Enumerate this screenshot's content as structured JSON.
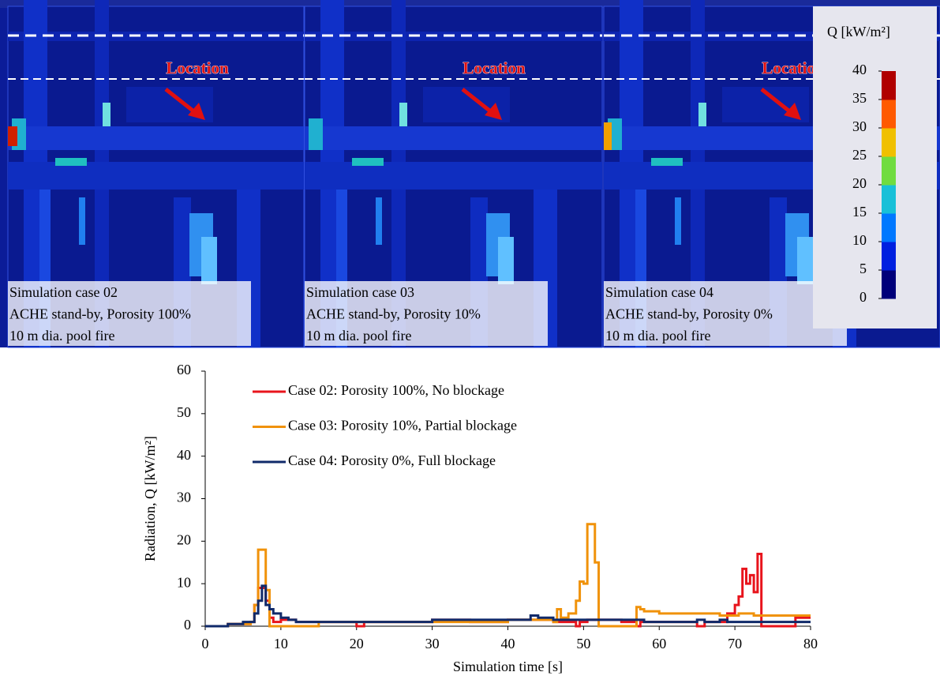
{
  "panels": [
    {
      "label": "Location",
      "caption": [
        "Simulation case 02",
        "ACHE stand-by, Porosity 100%",
        "10 m dia. pool fire"
      ]
    },
    {
      "label": "Location",
      "caption": [
        "Simulation case 03",
        "ACHE stand-by, Porosity 10%",
        "10 m dia. pool fire"
      ]
    },
    {
      "label": "Location",
      "caption": [
        "Simulation case 04",
        "ACHE stand-by, Porosity 0%",
        "10 m dia. pool fire"
      ]
    }
  ],
  "colorbar": {
    "title": "Q [kW/m²]",
    "lim": [
      0,
      40
    ],
    "ticks": [
      0,
      5,
      10,
      15,
      20,
      25,
      30,
      35,
      40
    ],
    "colors": [
      "#00007a",
      "#0020e0",
      "#0078ff",
      "#18c0d8",
      "#70dc40",
      "#f0c000",
      "#ff5a00",
      "#b00000"
    ]
  },
  "chart_data": {
    "type": "line",
    "step": "post",
    "xlabel": "Simulation time [s]",
    "ylabel": "Radiation, Q [kW/m²]",
    "xlim": [
      0,
      80
    ],
    "xticks": [
      0,
      10,
      20,
      30,
      40,
      50,
      60,
      70,
      80
    ],
    "ylim": [
      0,
      60
    ],
    "yticks": [
      0,
      10,
      20,
      30,
      40,
      50,
      60
    ],
    "grid": false,
    "legend": "upper left",
    "x": [
      0,
      3,
      4,
      5,
      6,
      6.5,
      7,
      7.5,
      8,
      8.5,
      9,
      10,
      11,
      12,
      15,
      20,
      21,
      25,
      30,
      35,
      40,
      43,
      44,
      46,
      46.5,
      47,
      48,
      49,
      49.5,
      50,
      50.5,
      51,
      51.5,
      52,
      52.5,
      55,
      57,
      57.5,
      58,
      60,
      65,
      66,
      68,
      69,
      70,
      70.5,
      71,
      71.5,
      72,
      72.5,
      73,
      73.5,
      75,
      78,
      80
    ],
    "series": [
      {
        "name": "Case 02: Porosity 100%, No blockage",
        "color": "#e8141c",
        "values": [
          0,
          0.5,
          0.5,
          0.5,
          1,
          5,
          9,
          9,
          6,
          2,
          1,
          1.5,
          1.5,
          1,
          1,
          0,
          1,
          1,
          1.5,
          1,
          1.5,
          1.5,
          1.5,
          1,
          1,
          1,
          1,
          0,
          1,
          1,
          1.5,
          1.5,
          1.5,
          1.5,
          1.5,
          1,
          0,
          1,
          1,
          1,
          0,
          1,
          1,
          3,
          5,
          7,
          13.5,
          10,
          12,
          8,
          17,
          0,
          0,
          2,
          2
        ]
      },
      {
        "name": "Case 03: Porosity 10%, Partial blockage",
        "color": "#f0920a",
        "values": [
          0,
          0.5,
          0.5,
          0.5,
          1,
          5,
          18,
          18,
          8.5,
          0,
          0,
          0,
          0,
          0,
          1,
          1,
          1,
          1,
          1,
          1,
          1.5,
          1.5,
          1.5,
          1,
          4,
          2,
          3,
          6,
          10.5,
          10,
          24,
          24,
          15,
          0,
          0,
          0,
          4.5,
          4,
          3.5,
          3,
          3,
          3,
          2.5,
          2.5,
          2.5,
          3,
          3,
          3,
          3,
          2.5,
          2.5,
          2.5,
          2.5,
          2.5,
          2.5
        ]
      },
      {
        "name": "Case 04: Porosity 0%, Full blockage",
        "color": "#102a6a",
        "values": [
          0,
          0.5,
          0.5,
          1,
          1,
          3,
          6,
          9.5,
          5,
          4,
          3,
          2,
          1.5,
          1,
          1,
          1,
          1,
          1,
          1.5,
          1.5,
          1.5,
          2.5,
          2,
          1.5,
          1.5,
          1.5,
          1.5,
          1.5,
          1.5,
          1.5,
          1.5,
          1.5,
          1.5,
          1.5,
          1.5,
          1.5,
          1.5,
          1.5,
          1,
          1,
          1.5,
          1,
          1.5,
          1,
          1,
          1,
          1,
          1,
          1,
          1,
          1,
          1,
          1,
          1,
          1
        ]
      }
    ]
  }
}
